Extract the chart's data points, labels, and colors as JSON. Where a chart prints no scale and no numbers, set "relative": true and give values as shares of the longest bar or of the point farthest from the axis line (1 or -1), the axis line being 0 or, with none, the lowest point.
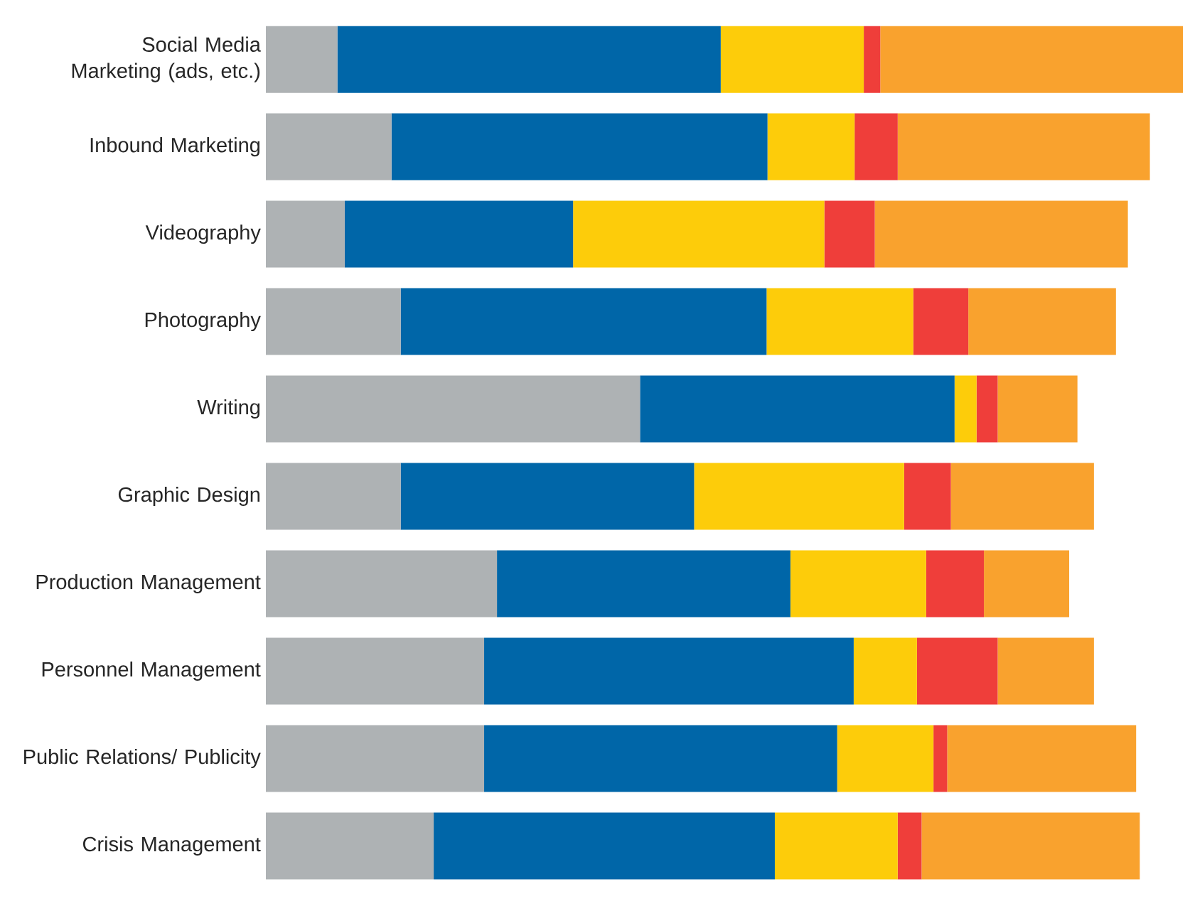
{
  "chart_data": {
    "type": "bar",
    "orientation": "horizontal",
    "stacked": true,
    "relative": true,
    "categories": [
      "Social Media Marketing (ads, etc.)",
      "Inbound Marketing",
      "Videography",
      "Photography",
      "Writing",
      "Graphic Design",
      "Production Management",
      "Personnel Management",
      "Public Relations/ Publicity",
      "Crisis Management"
    ],
    "series": [
      {
        "color": "#aeb2b4",
        "values": [
          0.078,
          0.137,
          0.086,
          0.147,
          0.408,
          0.147,
          0.252,
          0.238,
          0.238,
          0.183
        ]
      },
      {
        "color": "#0066a8",
        "values": [
          0.418,
          0.41,
          0.249,
          0.399,
          0.343,
          0.32,
          0.32,
          0.403,
          0.385,
          0.372
        ]
      },
      {
        "color": "#fdcc0a",
        "values": [
          0.156,
          0.095,
          0.274,
          0.16,
          0.024,
          0.229,
          0.148,
          0.069,
          0.105,
          0.134
        ]
      },
      {
        "color": "#ef3e3a",
        "values": [
          0.018,
          0.047,
          0.055,
          0.06,
          0.023,
          0.051,
          0.063,
          0.088,
          0.015,
          0.026
        ]
      },
      {
        "color": "#f9a22e",
        "values": [
          0.33,
          0.275,
          0.276,
          0.161,
          0.087,
          0.156,
          0.093,
          0.105,
          0.206,
          0.238
        ]
      }
    ]
  }
}
